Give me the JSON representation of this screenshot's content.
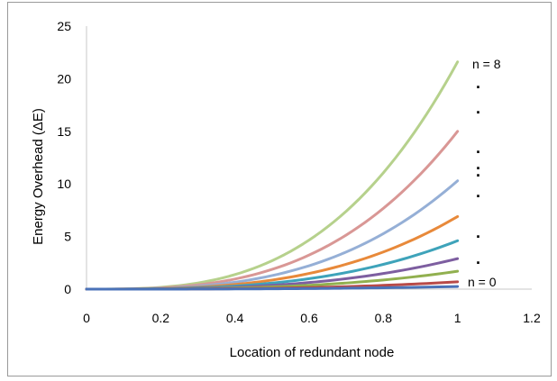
{
  "chart_data": {
    "type": "line",
    "title": "",
    "xlabel": "Location of redundant node",
    "ylabel": "Energy Overhead (ΔE)",
    "xlim": [
      0,
      1.2
    ],
    "ylim": [
      0,
      25
    ],
    "x_ticks": [
      "0",
      "0.2",
      "0.4",
      "0.6",
      "0.8",
      "1",
      "1.2"
    ],
    "y_ticks": [
      "0",
      "5",
      "10",
      "15",
      "20",
      "25"
    ],
    "grid": false,
    "legend": "none",
    "annotations": {
      "top": "n = 8",
      "bottom": "n = 0",
      "ellipsis": "."
    },
    "curve_shape": "y = end * x^3",
    "x_range": [
      0,
      1
    ],
    "series": [
      {
        "end": 0.25,
        "color": "#4a72b8"
      },
      {
        "end": 0.7,
        "color": "#b84a48"
      },
      {
        "end": 1.7,
        "color": "#91b04f"
      },
      {
        "end": 2.9,
        "color": "#7d5ea0"
      },
      {
        "end": 4.6,
        "color": "#3ea3ba"
      },
      {
        "end": 6.9,
        "color": "#e8893a"
      },
      {
        "end": 10.3,
        "color": "#95afd6"
      },
      {
        "end": 15.0,
        "color": "#d99795"
      },
      {
        "end": 21.6,
        "color": "#b6d18c"
      }
    ]
  }
}
